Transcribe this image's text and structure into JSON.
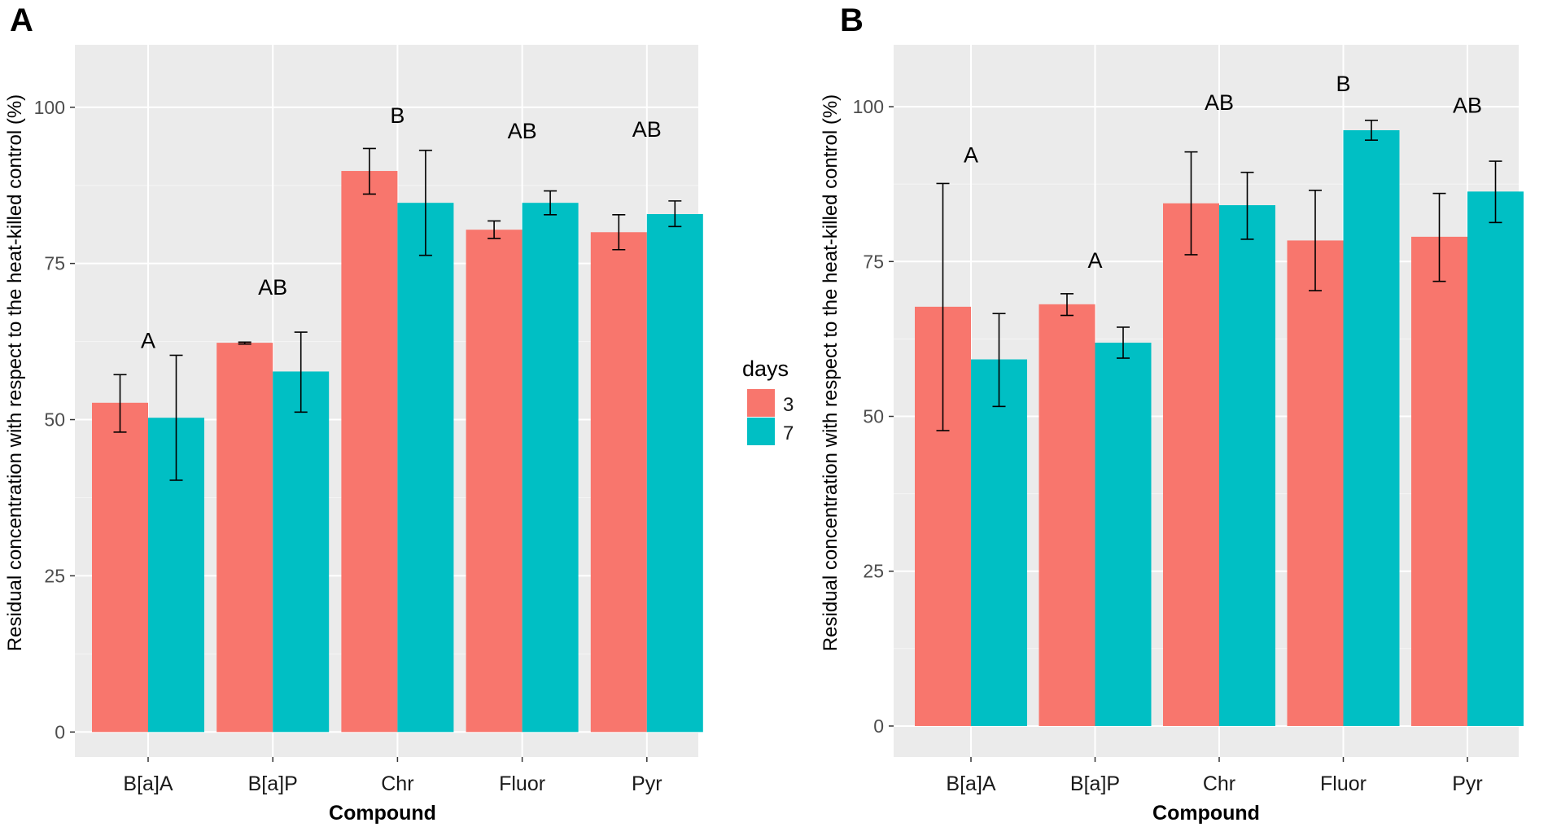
{
  "figure": {
    "description_labels": [
      "A",
      "B"
    ]
  },
  "legend": {
    "title": "days",
    "items": [
      {
        "label": "3",
        "color": "#F8766D"
      },
      {
        "label": "7",
        "color": "#00BFC4"
      }
    ]
  },
  "chart_data": [
    {
      "type": "bar",
      "panel": "A",
      "xlabel": "Compound",
      "ylabel": "Residual concentration with respect to the heat-killed control (%)",
      "categories": [
        "B[a]A",
        "B[a]P",
        "Chr",
        "Fluor",
        "Pyr"
      ],
      "ylim": [
        -4,
        110
      ],
      "yticks": [
        0,
        25,
        50,
        75,
        100
      ],
      "series": [
        {
          "name": "3",
          "color": "#F8766D",
          "values": [
            52.7,
            62.3,
            89.8,
            80.4,
            80.0
          ],
          "err_low": [
            48.0,
            62.1,
            86.1,
            79.0,
            77.2
          ],
          "err_high": [
            57.2,
            62.4,
            93.4,
            81.8,
            82.8
          ]
        },
        {
          "name": "7",
          "color": "#00BFC4",
          "values": [
            50.3,
            57.7,
            84.7,
            84.7,
            82.9
          ],
          "err_low": [
            40.3,
            51.2,
            76.3,
            82.8,
            80.9
          ],
          "err_high": [
            60.3,
            64.0,
            93.1,
            86.6,
            85.0
          ]
        }
      ],
      "group_labels": [
        {
          "category": "B[a]A",
          "text": "A",
          "y": 61.5
        },
        {
          "category": "B[a]P",
          "text": "AB",
          "y": 70.0
        },
        {
          "category": "Chr",
          "text": "B",
          "y": 97.5
        },
        {
          "category": "Fluor",
          "text": "AB",
          "y": 95.0
        },
        {
          "category": "Pyr",
          "text": "AB",
          "y": 95.3
        }
      ]
    },
    {
      "type": "bar",
      "panel": "B",
      "xlabel": "Compound",
      "ylabel": "Residual concentration with respect to the heat-killed control (%)",
      "categories": [
        "B[a]A",
        "B[a]P",
        "Chr",
        "Fluor",
        "Pyr"
      ],
      "ylim": [
        -5,
        110
      ],
      "yticks": [
        0,
        25,
        50,
        75,
        100
      ],
      "series": [
        {
          "name": "3",
          "color": "#F8766D",
          "values": [
            67.7,
            68.1,
            84.4,
            78.4,
            79.0
          ],
          "err_low": [
            47.7,
            66.3,
            76.1,
            70.3,
            71.8
          ],
          "err_high": [
            87.6,
            69.8,
            92.7,
            86.5,
            86.0
          ]
        },
        {
          "name": "7",
          "color": "#00BFC4",
          "values": [
            59.2,
            61.9,
            84.1,
            96.2,
            86.3
          ],
          "err_low": [
            51.6,
            59.4,
            78.6,
            94.6,
            81.3
          ],
          "err_high": [
            66.6,
            64.4,
            89.4,
            97.8,
            91.2
          ]
        }
      ],
      "group_labels": [
        {
          "category": "B[a]A",
          "text": "A",
          "y": 91.0
        },
        {
          "category": "B[a]P",
          "text": "A",
          "y": 74.0
        },
        {
          "category": "Chr",
          "text": "AB",
          "y": 99.5
        },
        {
          "category": "Fluor",
          "text": "B",
          "y": 102.5
        },
        {
          "category": "Pyr",
          "text": "AB",
          "y": 99.0
        }
      ]
    }
  ]
}
